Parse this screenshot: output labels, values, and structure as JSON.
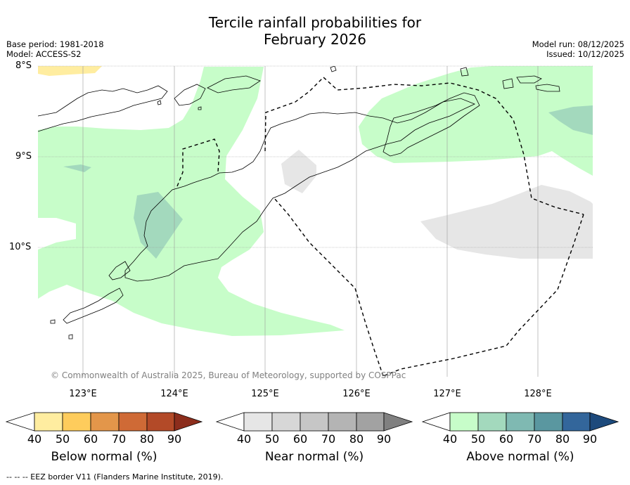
{
  "title_line1": "Tercile rainfall probabilities for",
  "title_line2": "February 2026",
  "base_period": "Base period: 1981-2018",
  "model": "Model: ACCESS-S2",
  "model_run": "Model run: 08/12/2025",
  "issued": "Issued: 10/12/2025",
  "latitudes": [
    "8°S",
    "9°S",
    "10°S"
  ],
  "longitudes": [
    "123°E",
    "124°E",
    "125°E",
    "126°E",
    "127°E",
    "128°E"
  ],
  "copyright": "© Commonwealth of Australia 2025, Bureau of Meteorology, supported by COSPPac",
  "legend": {
    "below": {
      "label": "Below normal (%)",
      "ticks": [
        "40",
        "50",
        "60",
        "70",
        "80",
        "90"
      ],
      "colors": [
        "#ffffff",
        "#ffeda0",
        "#fecc5c",
        "#e3964a",
        "#cf6a36",
        "#b34a28",
        "#8c2d1c"
      ]
    },
    "near": {
      "label": "Near normal (%)",
      "ticks": [
        "40",
        "50",
        "60",
        "70",
        "80",
        "90"
      ],
      "colors": [
        "#ffffff",
        "#e6e6e6",
        "#d7d7d7",
        "#c6c6c6",
        "#b4b4b4",
        "#a2a2a2",
        "#808080"
      ]
    },
    "above": {
      "label": "Above normal (%)",
      "ticks": [
        "40",
        "50",
        "60",
        "70",
        "80",
        "90"
      ],
      "colors": [
        "#ffffff",
        "#c7fdc9",
        "#a3d9bd",
        "#7fb9b2",
        "#5a97a0",
        "#33669b",
        "#1d4a7c"
      ]
    }
  },
  "eez_note": "--  --  -- EEZ border V11 (Flanders Marine Institute, 2019)."
}
